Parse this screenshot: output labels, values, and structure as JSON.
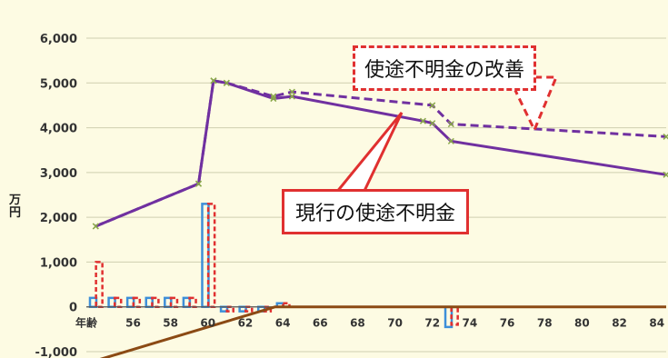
{
  "chart_data": {
    "type": "line",
    "title": "",
    "ylabel": "万\n円",
    "xlabel": "年齢",
    "ylim": [
      -1000,
      6000
    ],
    "xlim": [
      53.5,
      84.5
    ],
    "yticks": [
      -1000,
      0,
      1000,
      2000,
      3000,
      4000,
      5000,
      6000
    ],
    "ytick_labels": [
      "-1,000",
      "0",
      "1,000",
      "2,000",
      "3,000",
      "4,000",
      "5,000",
      "6,000"
    ],
    "xticks": [
      56,
      58,
      60,
      62,
      64,
      66,
      68,
      70,
      72,
      74,
      76,
      78,
      80,
      82,
      84
    ],
    "xtick_labels": [
      "56",
      "58",
      "60",
      "62",
      "64",
      "66",
      "68",
      "70",
      "72",
      "74",
      "76",
      "78",
      "80",
      "82",
      "84"
    ],
    "grid": true,
    "legend": "none",
    "lines": [
      {
        "style": "solid",
        "color": "#7030a0",
        "points": [
          [
            54,
            1800
          ],
          [
            59.5,
            2750
          ],
          [
            60.3,
            5050
          ],
          [
            61,
            5000
          ],
          [
            63.5,
            4650
          ],
          [
            64.5,
            4700
          ],
          [
            71.5,
            4150
          ],
          [
            72,
            4100
          ],
          [
            73,
            3700
          ],
          [
            84.5,
            2950
          ]
        ]
      },
      {
        "style": "dashed",
        "color": "#7030a0",
        "points": [
          [
            54,
            1800
          ],
          [
            59.5,
            2750
          ],
          [
            60.3,
            5050
          ],
          [
            61,
            5000
          ],
          [
            63.5,
            4700
          ],
          [
            64.5,
            4800
          ],
          [
            72,
            4500
          ],
          [
            73,
            4080
          ],
          [
            84.5,
            3800
          ]
        ]
      },
      {
        "style": "solid",
        "color": "#8b4a14",
        "points": [
          [
            54,
            -1200
          ],
          [
            63.6,
            0
          ],
          [
            84.5,
            0
          ]
        ]
      }
    ],
    "bars": [
      {
        "name": "blue",
        "style": "solid",
        "color": "#3d8fd9",
        "x": [
          54,
          55,
          56,
          57,
          58,
          59,
          60,
          61,
          62,
          63,
          64,
          73
        ],
        "values": [
          200,
          200,
          200,
          200,
          200,
          200,
          2300,
          -100,
          -100,
          -100,
          80,
          -450
        ]
      },
      {
        "name": "red",
        "style": "dashed",
        "color": "#e03030",
        "x": [
          54,
          55,
          56,
          57,
          58,
          59,
          60,
          61,
          62,
          63,
          64,
          73
        ],
        "values": [
          1000,
          200,
          200,
          200,
          200,
          200,
          2300,
          -100,
          -100,
          -100,
          80,
          -400
        ]
      }
    ],
    "annotations": [
      {
        "id": "improved",
        "text": "使途不明金の改善"
      },
      {
        "id": "current",
        "text": "現行の使途不明金"
      }
    ]
  }
}
